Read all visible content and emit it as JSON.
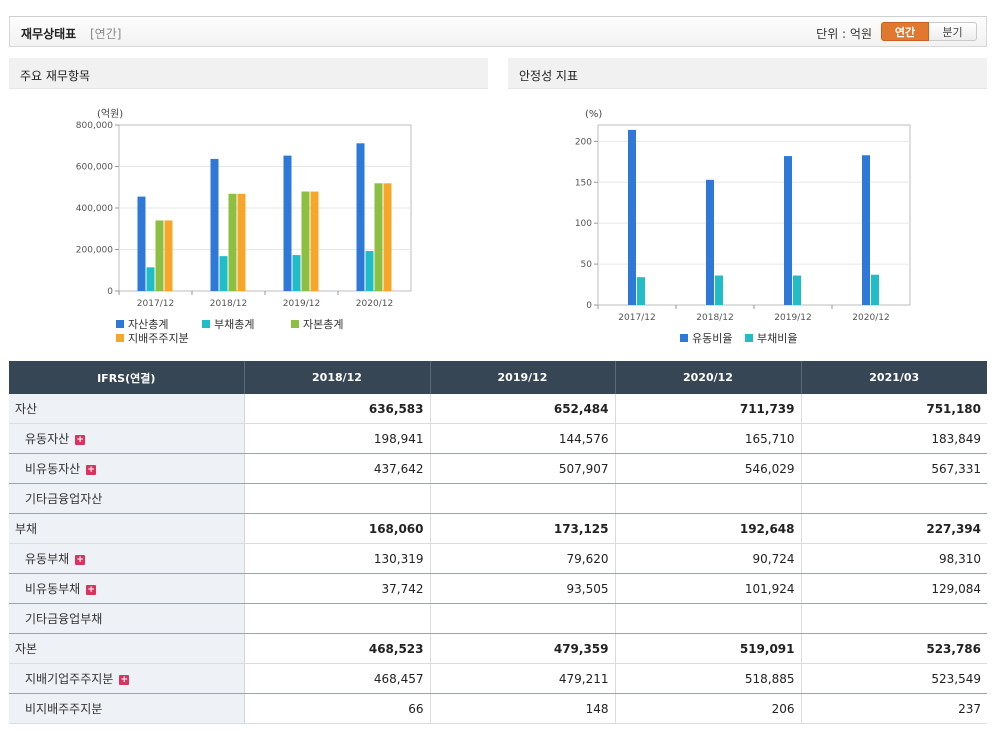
{
  "header": {
    "title": "재무상태표",
    "sub": "[연간]",
    "unit_label": "단위 : 억원",
    "tab_annual": "연간",
    "tab_quarter": "분기"
  },
  "colors": {
    "asset": "#2e78d8",
    "debt": "#20bcc8",
    "capital": "#8dbf42",
    "parent": "#f6a629",
    "active_tab": "#e0782f"
  },
  "chart_data": [
    {
      "type": "bar",
      "panel_title": "주요 재무항목",
      "unit_label": "(억원)",
      "categories": [
        "2017/12",
        "2018/12",
        "2019/12",
        "2020/12"
      ],
      "ylim": [
        0,
        800000
      ],
      "yticks": [
        "0",
        "200,000",
        "400,000",
        "600,000",
        "800,000"
      ],
      "ytick_values": [
        0,
        200000,
        400000,
        600000,
        800000
      ],
      "grid": true,
      "legend_position": "bottom",
      "series": [
        {
          "name": "자산총계",
          "values": [
            455000,
            636583,
            652484,
            711739
          ]
        },
        {
          "name": "부채총계",
          "values": [
            114000,
            168060,
            173125,
            192648
          ]
        },
        {
          "name": "자본총계",
          "values": [
            340000,
            468523,
            479359,
            519091
          ]
        },
        {
          "name": "지배주주지분",
          "values": [
            340000,
            468457,
            479211,
            518885
          ]
        }
      ]
    },
    {
      "type": "bar",
      "panel_title": "안정성 지표",
      "unit_label": "(%)",
      "categories": [
        "2017/12",
        "2018/12",
        "2019/12",
        "2020/12"
      ],
      "ylim": [
        0,
        220
      ],
      "yticks": [
        "0",
        "50",
        "100",
        "150",
        "200"
      ],
      "ytick_values": [
        0,
        50,
        100,
        150,
        200
      ],
      "grid": true,
      "legend_position": "bottom",
      "series": [
        {
          "name": "유동비율",
          "values": [
            214,
            153,
            182,
            183
          ]
        },
        {
          "name": "부채비율",
          "values": [
            34,
            36,
            36,
            37
          ]
        }
      ]
    }
  ],
  "table": {
    "corner": "IFRS(연결)",
    "columns": [
      "2018/12",
      "2019/12",
      "2020/12",
      "2021/03"
    ],
    "rows": [
      {
        "label": "자산",
        "major": true,
        "plus": false,
        "values": [
          "636,583",
          "652,484",
          "711,739",
          "751,180"
        ]
      },
      {
        "label": "유동자산",
        "major": false,
        "plus": true,
        "values": [
          "198,941",
          "144,576",
          "165,710",
          "183,849"
        ]
      },
      {
        "label": "비유동자산",
        "major": false,
        "plus": true,
        "values": [
          "437,642",
          "507,907",
          "546,029",
          "567,331"
        ]
      },
      {
        "label": "기타금융업자산",
        "major": false,
        "plus": false,
        "values": [
          "",
          "",
          "",
          ""
        ]
      },
      {
        "label": "부채",
        "major": true,
        "plus": false,
        "values": [
          "168,060",
          "173,125",
          "192,648",
          "227,394"
        ]
      },
      {
        "label": "유동부채",
        "major": false,
        "plus": true,
        "values": [
          "130,319",
          "79,620",
          "90,724",
          "98,310"
        ]
      },
      {
        "label": "비유동부채",
        "major": false,
        "plus": true,
        "values": [
          "37,742",
          "93,505",
          "101,924",
          "129,084"
        ]
      },
      {
        "label": "기타금융업부채",
        "major": false,
        "plus": false,
        "values": [
          "",
          "",
          "",
          ""
        ]
      },
      {
        "label": "자본",
        "major": true,
        "plus": false,
        "values": [
          "468,523",
          "479,359",
          "519,091",
          "523,786"
        ]
      },
      {
        "label": "지배기업주주지분",
        "major": false,
        "plus": true,
        "values": [
          "468,457",
          "479,211",
          "518,885",
          "523,549"
        ]
      },
      {
        "label": "비지배주주지분",
        "major": false,
        "plus": false,
        "values": [
          "66",
          "148",
          "206",
          "237"
        ]
      }
    ]
  }
}
